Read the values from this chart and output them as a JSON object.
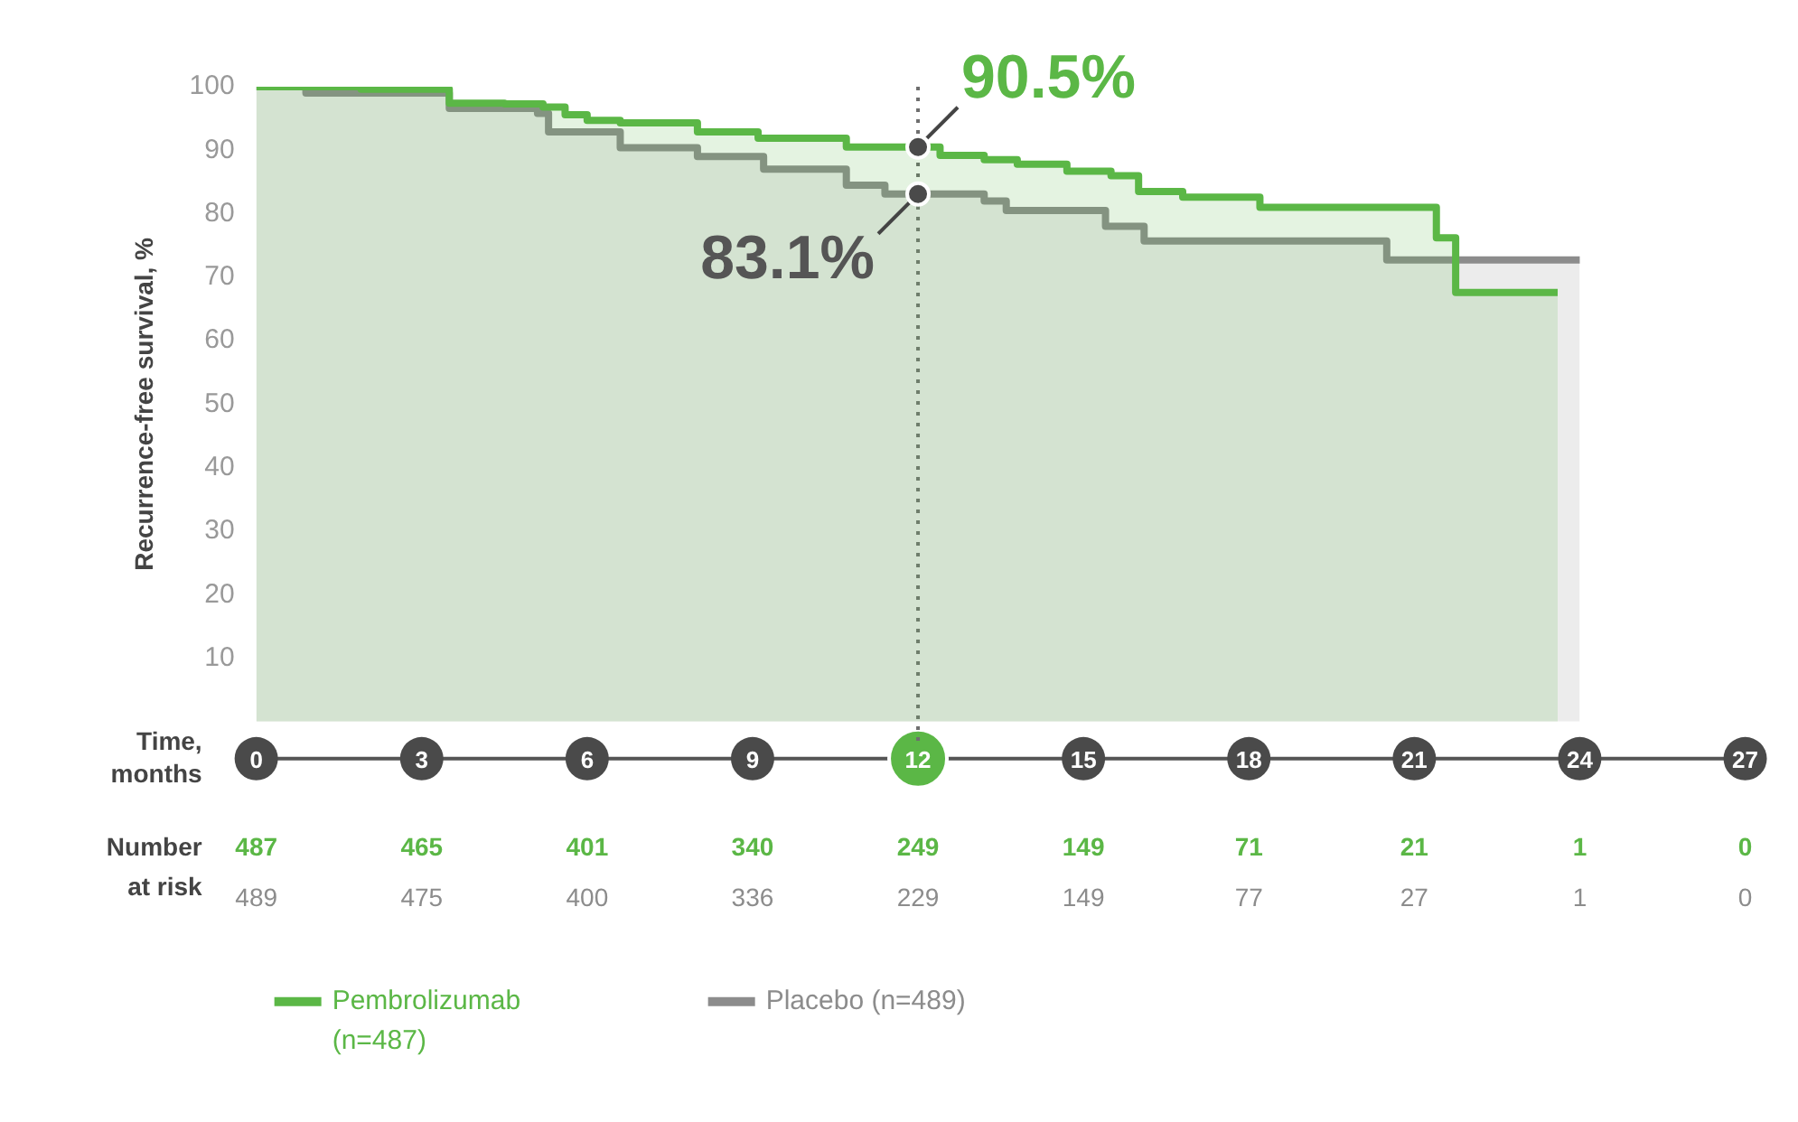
{
  "chart_data": {
    "type": "area",
    "ylabel": "Recurrence-free survival, %",
    "xlabel": "Time, months",
    "xlim": [
      0,
      27
    ],
    "xticks": [
      0,
      3,
      6,
      9,
      12,
      15,
      18,
      21,
      24,
      27
    ],
    "ylim": [
      0,
      100
    ],
    "yticks": [
      10,
      20,
      30,
      40,
      50,
      60,
      70,
      80,
      90,
      100
    ],
    "grid": false,
    "legend": "bottom left",
    "marker": "none",
    "line_style": "solid",
    "series": [
      {
        "name": "Pembrolizumab (n=487)",
        "color": "#5bb746",
        "x": [
          0,
          1.9,
          1.9,
          3.5,
          3.5,
          4.5,
          4.5,
          5.2,
          5.2,
          5.6,
          5.6,
          6.0,
          6.0,
          6.6,
          6.6,
          8.0,
          8.0,
          9.1,
          9.1,
          10.7,
          10.7,
          12.4,
          12.4,
          13.2,
          13.2,
          13.8,
          13.8,
          14.7,
          14.7,
          15.5,
          15.5,
          16,
          16,
          16.8,
          16.8,
          18.2,
          18.2,
          21.4,
          21.4,
          21.75,
          21.75,
          23.6
        ],
        "values": [
          100,
          100,
          99.6,
          99.6,
          97.4,
          97.4,
          97.3,
          97.3,
          96.8,
          96.8,
          95.6,
          95.6,
          94.7,
          94.7,
          94.3,
          94.3,
          92.9,
          92.9,
          91.9,
          91.9,
          90.5,
          90.5,
          89.2,
          89.2,
          88.5,
          88.5,
          87.8,
          87.8,
          86.7,
          86.7,
          86,
          86,
          83.5,
          83.5,
          82.6,
          82.6,
          81,
          81,
          76.2,
          76.2,
          67.6,
          67.6
        ]
      },
      {
        "name": "Placebo (n=489)",
        "color": "#8c8c8c",
        "x": [
          0,
          0.9,
          0.9,
          3.5,
          3.5,
          5.1,
          5.1,
          5.3,
          5.3,
          6.6,
          6.6,
          8,
          8,
          9.2,
          9.2,
          10.7,
          10.7,
          11.4,
          11.4,
          13.2,
          13.2,
          13.6,
          13.6,
          15.4,
          15.4,
          16.1,
          16.1,
          20.5,
          20.5,
          24
        ],
        "values": [
          100,
          100,
          99,
          99,
          96.6,
          96.6,
          95.8,
          95.8,
          92.9,
          92.9,
          90.4,
          90.4,
          89,
          89,
          87,
          87,
          84.5,
          84.5,
          83.1,
          83.1,
          82,
          82,
          80.5,
          80.5,
          78,
          78,
          75.7,
          75.7,
          72.7,
          72.7
        ]
      }
    ],
    "ref_lines": [
      {
        "axis": "x",
        "value": 12,
        "color": "#6e6e6e",
        "line_style": "dotted"
      }
    ],
    "annotations": [
      {
        "text": "90.5%",
        "x": 12,
        "y": 90.5
      },
      {
        "text": "83.1%",
        "x": 12,
        "y": 83.1
      },
      "Number at risk",
      "487",
      "465",
      "401",
      "340",
      "249",
      "149",
      "71",
      "21",
      "1",
      "0",
      "489",
      "475",
      "400",
      "336",
      "229",
      "149",
      "77",
      "27",
      "1",
      "0"
    ]
  }
}
